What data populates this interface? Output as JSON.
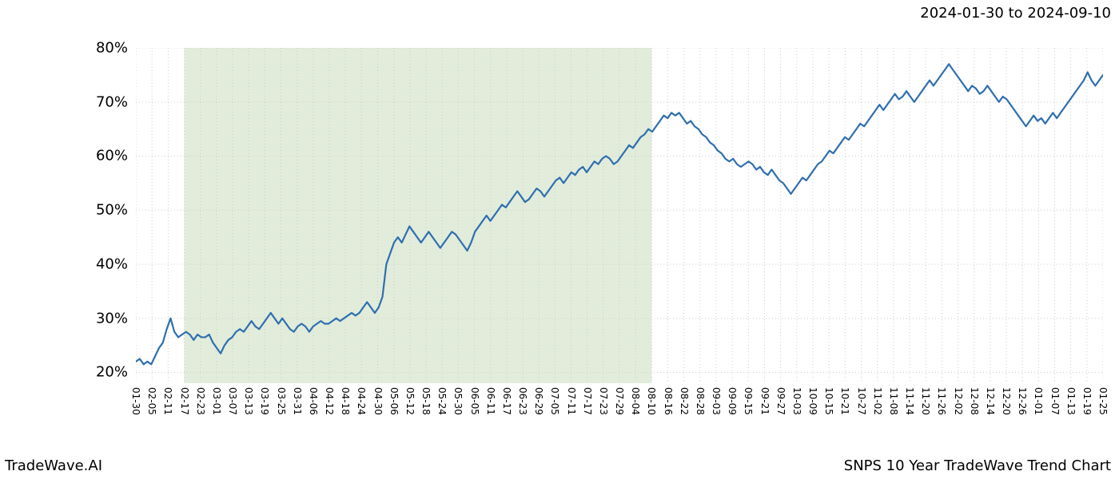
{
  "header": {
    "date_range": "2024-01-30 to 2024-09-10"
  },
  "footer": {
    "left": "TradeWave.AI",
    "right": "SNPS 10 Year TradeWave Trend Chart"
  },
  "chart": {
    "type": "line",
    "background_color": "#ffffff",
    "grid_color": "#cccccc",
    "grid_dash": "1,3",
    "line_color": "#2f6fae",
    "line_width": 2.2,
    "highlight_fill": "#dfead7",
    "highlight_opacity": 0.9,
    "highlight_start_index": 3,
    "highlight_end_index": 32,
    "ylim": [
      18,
      80
    ],
    "yticks": [
      20,
      30,
      40,
      50,
      60,
      70,
      80
    ],
    "ytick_suffix": "%",
    "ytick_fontsize": 18,
    "xtick_fontsize": 12,
    "xtick_labels": [
      "01-30",
      "02-05",
      "02-11",
      "02-17",
      "02-23",
      "03-01",
      "03-07",
      "03-13",
      "03-19",
      "03-25",
      "03-31",
      "04-06",
      "04-12",
      "04-18",
      "04-24",
      "04-30",
      "05-06",
      "05-12",
      "05-18",
      "05-24",
      "05-30",
      "06-05",
      "06-11",
      "06-17",
      "06-23",
      "06-29",
      "07-05",
      "07-11",
      "07-17",
      "07-23",
      "07-29",
      "08-04",
      "08-10",
      "08-16",
      "08-22",
      "08-28",
      "09-03",
      "09-09",
      "09-15",
      "09-21",
      "09-27",
      "10-03",
      "10-09",
      "10-15",
      "10-21",
      "10-27",
      "11-02",
      "11-08",
      "11-14",
      "11-20",
      "11-26",
      "12-02",
      "12-08",
      "12-14",
      "12-20",
      "12-26",
      "01-01",
      "01-07",
      "01-13",
      "01-19",
      "01-25"
    ],
    "series": [
      22.0,
      22.5,
      21.5,
      22.0,
      21.5,
      23.0,
      24.5,
      25.5,
      28.0,
      30.0,
      27.5,
      26.5,
      27.0,
      27.5,
      27.0,
      26.0,
      27.0,
      26.5,
      26.5,
      27.0,
      25.5,
      24.5,
      23.5,
      25.0,
      26.0,
      26.5,
      27.5,
      28.0,
      27.5,
      28.5,
      29.5,
      28.5,
      28.0,
      29.0,
      30.0,
      31.0,
      30.0,
      29.0,
      30.0,
      29.0,
      28.0,
      27.5,
      28.5,
      29.0,
      28.5,
      27.5,
      28.5,
      29.0,
      29.5,
      29.0,
      29.0,
      29.5,
      30.0,
      29.5,
      30.0,
      30.5,
      31.0,
      30.5,
      31.0,
      32.0,
      33.0,
      32.0,
      31.0,
      32.0,
      34.0,
      40.0,
      42.0,
      44.0,
      45.0,
      44.0,
      45.5,
      47.0,
      46.0,
      45.0,
      44.0,
      45.0,
      46.0,
      45.0,
      44.0,
      43.0,
      44.0,
      45.0,
      46.0,
      45.5,
      44.5,
      43.5,
      42.5,
      44.0,
      46.0,
      47.0,
      48.0,
      49.0,
      48.0,
      49.0,
      50.0,
      51.0,
      50.5,
      51.5,
      52.5,
      53.5,
      52.5,
      51.5,
      52.0,
      53.0,
      54.0,
      53.5,
      52.5,
      53.5,
      54.5,
      55.5,
      56.0,
      55.0,
      56.0,
      57.0,
      56.5,
      57.5,
      58.0,
      57.0,
      58.0,
      59.0,
      58.5,
      59.5,
      60.0,
      59.5,
      58.5,
      59.0,
      60.0,
      61.0,
      62.0,
      61.5,
      62.5,
      63.5,
      64.0,
      65.0,
      64.5,
      65.5,
      66.5,
      67.5,
      67.0,
      68.0,
      67.5,
      68.0,
      67.0,
      66.0,
      66.5,
      65.5,
      65.0,
      64.0,
      63.5,
      62.5,
      62.0,
      61.0,
      60.5,
      59.5,
      59.0,
      59.5,
      58.5,
      58.0,
      58.5,
      59.0,
      58.5,
      57.5,
      58.0,
      57.0,
      56.5,
      57.5,
      56.5,
      55.5,
      55.0,
      54.0,
      53.0,
      54.0,
      55.0,
      56.0,
      55.5,
      56.5,
      57.5,
      58.5,
      59.0,
      60.0,
      61.0,
      60.5,
      61.5,
      62.5,
      63.5,
      63.0,
      64.0,
      65.0,
      66.0,
      65.5,
      66.5,
      67.5,
      68.5,
      69.5,
      68.5,
      69.5,
      70.5,
      71.5,
      70.5,
      71.0,
      72.0,
      71.0,
      70.0,
      71.0,
      72.0,
      73.0,
      74.0,
      73.0,
      74.0,
      75.0,
      76.0,
      77.0,
      76.0,
      75.0,
      74.0,
      73.0,
      72.0,
      73.0,
      72.5,
      71.5,
      72.0,
      73.0,
      72.0,
      71.0,
      70.0,
      71.0,
      70.5,
      69.5,
      68.5,
      67.5,
      66.5,
      65.5,
      66.5,
      67.5,
      66.5,
      67.0,
      66.0,
      67.0,
      68.0,
      67.0,
      68.0,
      69.0,
      70.0,
      71.0,
      72.0,
      73.0,
      74.0,
      75.5,
      74.0,
      73.0,
      74.0,
      75.0
    ]
  }
}
